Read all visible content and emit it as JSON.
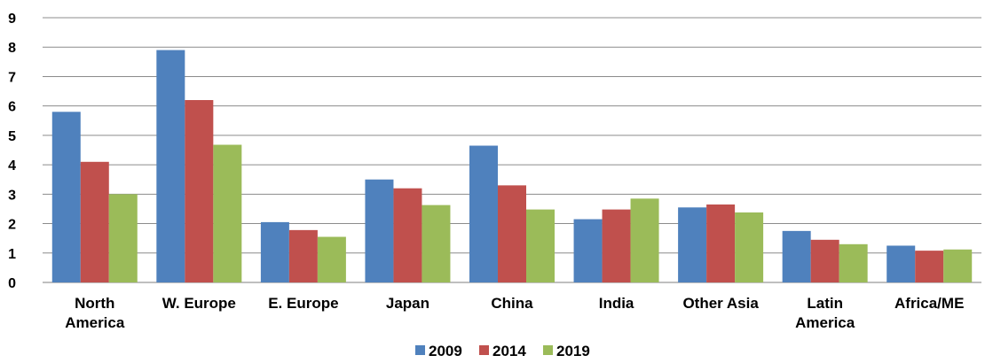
{
  "chart_data": {
    "type": "bar",
    "categories": [
      "North America",
      "W. Europe",
      "E. Europe",
      "Japan",
      "China",
      "India",
      "Other Asia",
      "Latin America",
      "Africa/ME"
    ],
    "category_lines": [
      [
        "North",
        "America"
      ],
      [
        "W. Europe"
      ],
      [
        "E. Europe"
      ],
      [
        "Japan"
      ],
      [
        "China"
      ],
      [
        "India"
      ],
      [
        "Other Asia"
      ],
      [
        "Latin",
        "America"
      ],
      [
        "Africa/ME"
      ]
    ],
    "series": [
      {
        "name": "2009",
        "color": "#4f81bd",
        "values": [
          5.8,
          7.9,
          2.05,
          3.5,
          4.65,
          2.15,
          2.55,
          1.75,
          1.25
        ]
      },
      {
        "name": "2014",
        "color": "#c0504d",
        "values": [
          4.1,
          6.2,
          1.78,
          3.2,
          3.3,
          2.48,
          2.65,
          1.45,
          1.08
        ]
      },
      {
        "name": "2019",
        "color": "#9bbb59",
        "values": [
          3.0,
          4.68,
          1.55,
          2.63,
          2.48,
          2.85,
          2.38,
          1.3,
          1.12
        ]
      }
    ],
    "ylim": [
      0,
      9
    ],
    "yticks": [
      0,
      1,
      2,
      3,
      4,
      5,
      6,
      7,
      8,
      9
    ],
    "grid": true,
    "legend_position": "bottom",
    "title": "",
    "xlabel": "",
    "ylabel": ""
  }
}
